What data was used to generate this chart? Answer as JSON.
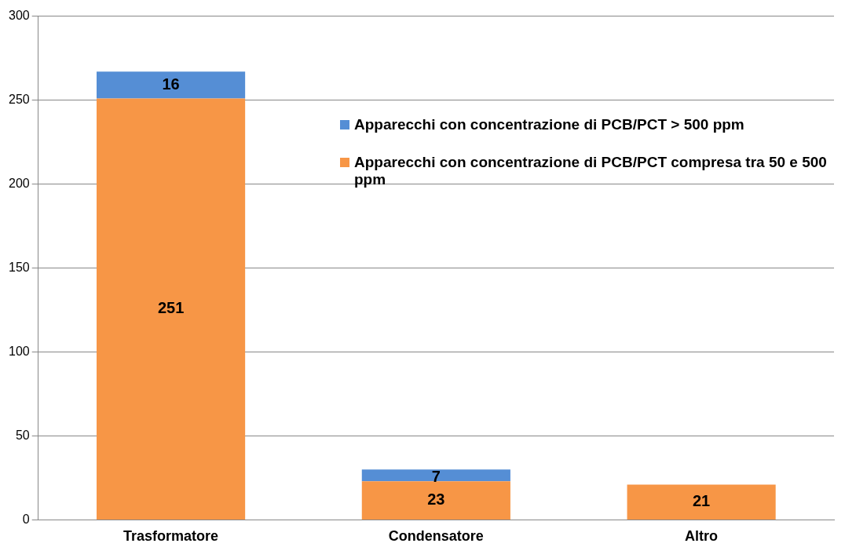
{
  "chart_data": {
    "type": "bar",
    "stacked": true,
    "categories": [
      "Trasformatore",
      "Condensatore",
      "Altro"
    ],
    "series": [
      {
        "name": "Apparecchi con concentrazione di PCB/PCT compresa tra 50 e 500 ppm",
        "color": "#f79646",
        "values": [
          251,
          23,
          21
        ]
      },
      {
        "name": "Apparecchi con concentrazione di PCB/PCT > 500 ppm",
        "color": "#558ed5",
        "values": [
          16,
          7,
          null
        ]
      }
    ],
    "ylim": [
      0,
      300
    ],
    "yticks": [
      0,
      50,
      100,
      150,
      200,
      250,
      300
    ],
    "grid": "y",
    "legend": "top right",
    "data_labels": true
  }
}
